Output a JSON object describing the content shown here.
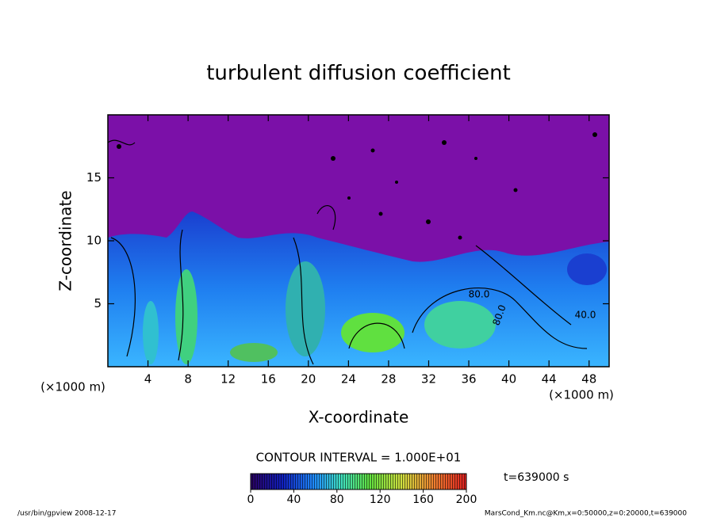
{
  "chart_data": {
    "type": "contour",
    "title": "turbulent diffusion coefficient",
    "xlabel": "X-coordinate",
    "ylabel": "Z-coordinate",
    "x_unit_label": "(×1000 m)",
    "xlim": [
      0,
      50
    ],
    "xticks": [
      4,
      8,
      12,
      16,
      20,
      24,
      28,
      32,
      36,
      40,
      44,
      48
    ],
    "ylim": [
      0,
      20
    ],
    "yticks": [
      5,
      10,
      15
    ],
    "contour_labels": [
      "80.0",
      "80.0",
      "40.0"
    ],
    "contour_interval_label": "CONTOUR INTERVAL = 1.000E+01",
    "colorbar": {
      "lim": [
        0,
        200
      ],
      "ticks": [
        0,
        40,
        80,
        120,
        160,
        200
      ]
    },
    "time_label": "t=639000 s",
    "footer_left": "/usr/bin/gpview   2008-12-17",
    "footer_right": "MarsCond_Km.nc@Km,x=0:50000,z=0:20000,t=639000"
  }
}
